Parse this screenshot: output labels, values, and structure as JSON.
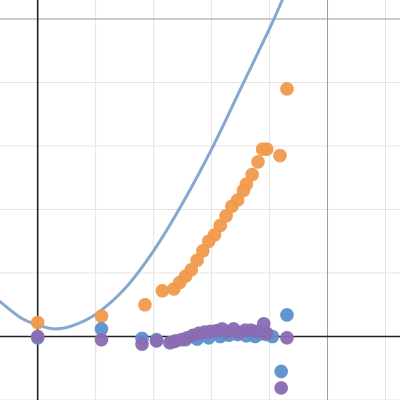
{
  "chart_data": {
    "type": "scatter",
    "xlim": [
      -0.65,
      6.25
    ],
    "ylim": [
      -1.0,
      5.3
    ],
    "grid": true,
    "grid_minor_step": 1,
    "grid_major_step": 5,
    "axes": {
      "x_axis_at_y": 0,
      "y_axis_at_x": 0
    },
    "colors": {
      "background": "#ffffff",
      "grid_minor": "#e4e4e4",
      "grid_major": "#9b9b9b",
      "axis": "#222222",
      "curve": "#7fa2cf",
      "orange": "#f09a4c",
      "blue": "#5b8fcc",
      "purple": "#8a6bb2"
    },
    "curve": {
      "color": "#7fa2cf",
      "points": [
        [
          -0.65,
          0.55
        ],
        [
          -0.3,
          0.3
        ],
        [
          0,
          0.18
        ],
        [
          0.3,
          0.12
        ],
        [
          0.6,
          0.17
        ],
        [
          1.0,
          0.35
        ],
        [
          1.5,
          0.75
        ],
        [
          2.0,
          1.35
        ],
        [
          2.5,
          2.1
        ],
        [
          3.0,
          2.95
        ],
        [
          3.5,
          3.9
        ],
        [
          4.0,
          4.85
        ],
        [
          4.22,
          5.3
        ]
      ]
    },
    "series": [
      {
        "color": "#f09a4c",
        "points": [
          [
            0.0,
            0.22
          ],
          [
            1.1,
            0.32
          ],
          [
            1.85,
            0.5
          ],
          [
            2.15,
            0.72
          ],
          [
            2.35,
            0.75
          ],
          [
            2.45,
            0.85
          ],
          [
            2.55,
            0.95
          ],
          [
            2.65,
            1.05
          ],
          [
            2.75,
            1.2
          ],
          [
            2.85,
            1.35
          ],
          [
            2.95,
            1.5
          ],
          [
            3.05,
            1.6
          ],
          [
            3.15,
            1.75
          ],
          [
            3.25,
            1.9
          ],
          [
            3.35,
            2.05
          ],
          [
            3.45,
            2.15
          ],
          [
            3.55,
            2.3
          ],
          [
            3.6,
            2.4
          ],
          [
            3.7,
            2.55
          ],
          [
            3.8,
            2.75
          ],
          [
            3.88,
            2.95
          ],
          [
            3.95,
            2.95
          ],
          [
            4.18,
            2.85
          ],
          [
            4.3,
            3.9
          ]
        ]
      },
      {
        "color": "#5b8fcc",
        "points": [
          [
            0.0,
            -0.02
          ],
          [
            1.1,
            0.12
          ],
          [
            1.8,
            -0.03
          ],
          [
            2.05,
            -0.05
          ],
          [
            2.35,
            -0.08
          ],
          [
            2.55,
            -0.05
          ],
          [
            2.75,
            -0.04
          ],
          [
            2.95,
            -0.02
          ],
          [
            3.15,
            0.0
          ],
          [
            3.3,
            0.02
          ],
          [
            3.45,
            0.03
          ],
          [
            3.6,
            0.01
          ],
          [
            3.75,
            0.0
          ],
          [
            3.85,
            0.04
          ],
          [
            3.95,
            0.03
          ],
          [
            4.05,
            0.0
          ],
          [
            4.2,
            -0.55
          ],
          [
            4.3,
            0.34
          ]
        ]
      },
      {
        "color": "#8a6bb2",
        "points": [
          [
            0.0,
            0.0
          ],
          [
            1.1,
            -0.05
          ],
          [
            1.8,
            -0.12
          ],
          [
            2.05,
            -0.07
          ],
          [
            2.28,
            -0.1
          ],
          [
            2.38,
            -0.07
          ],
          [
            2.48,
            -0.05
          ],
          [
            2.58,
            -0.02
          ],
          [
            2.68,
            0.02
          ],
          [
            2.78,
            0.05
          ],
          [
            2.88,
            0.07
          ],
          [
            2.98,
            0.08
          ],
          [
            3.08,
            0.09
          ],
          [
            3.18,
            0.12
          ],
          [
            3.28,
            0.08
          ],
          [
            3.38,
            0.12
          ],
          [
            3.48,
            0.06
          ],
          [
            3.58,
            0.1
          ],
          [
            3.68,
            0.1
          ],
          [
            3.78,
            0.08
          ],
          [
            3.9,
            0.2
          ],
          [
            3.95,
            0.05
          ],
          [
            4.2,
            -0.81
          ],
          [
            4.3,
            -0.02
          ]
        ]
      }
    ]
  }
}
